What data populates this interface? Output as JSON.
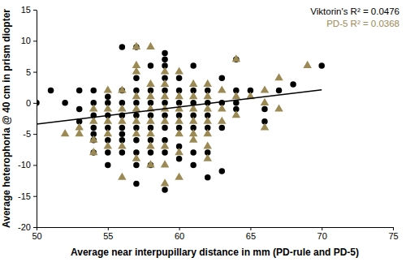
{
  "chart_data": {
    "type": "scatter",
    "x_label": "Average near interpupillary distance in mm (PD-rule and PD-5)",
    "y_label": "Average heterophoria @ 40 cm in prism diopter",
    "xlim": [
      50,
      75
    ],
    "ylim": [
      -20,
      15
    ],
    "xticks": [
      50,
      55,
      60,
      65,
      70,
      75
    ],
    "yticks": [
      -20,
      -15,
      -10,
      -5,
      0,
      5,
      10,
      15
    ],
    "grid": false,
    "legend": "top-right",
    "series": [
      {
        "name": "Viktorin's R² = 0.0476",
        "color": "#000000",
        "marker": "circle",
        "x": [
          50,
          51,
          52,
          53,
          53,
          53,
          54,
          54,
          54,
          54,
          54,
          54,
          54,
          55,
          55,
          55,
          55,
          55,
          55,
          55,
          56,
          56,
          56,
          56,
          56,
          56,
          56,
          56,
          57,
          57,
          57,
          57,
          57,
          57,
          57,
          57,
          57,
          57,
          58,
          58,
          58,
          58,
          58,
          58,
          58,
          58,
          59,
          59,
          59,
          59,
          59,
          59,
          59,
          59,
          59,
          59,
          59,
          60,
          60,
          60,
          60,
          60,
          60,
          61,
          61,
          61,
          61,
          61,
          61,
          61,
          62,
          62,
          62,
          62,
          62,
          62,
          63,
          63,
          63,
          64,
          64,
          64,
          64,
          65,
          66,
          66,
          67,
          68,
          70,
          63,
          60
        ],
        "values": [
          0,
          2,
          0,
          2,
          -1,
          -3,
          2,
          0,
          -2,
          -4,
          -5,
          -6,
          -8,
          1,
          0,
          -2,
          -4,
          -6,
          -8,
          -10,
          9,
          2,
          0,
          -2,
          -4,
          -5,
          -6,
          -8,
          9,
          4,
          2,
          0,
          -2,
          -4,
          -6,
          -8,
          -10,
          -13,
          6,
          2,
          0,
          -2,
          -4,
          -6,
          -8,
          -10,
          8,
          7,
          6,
          4,
          2,
          0,
          -2,
          -4,
          -6,
          -8,
          -14,
          4,
          2,
          0,
          -2,
          -4,
          -7,
          6,
          2,
          0,
          -2,
          -4,
          -8,
          -10,
          2,
          0,
          -2,
          -4,
          -8,
          -12,
          4,
          0,
          -4,
          7,
          2,
          0,
          -1,
          2,
          -1,
          -3,
          2,
          3,
          6,
          -11,
          -9
        ]
      },
      {
        "name": "PD-5 R² = 0.0368",
        "color": "#9c8a54",
        "marker": "triangle",
        "x": [
          53,
          53,
          54,
          54,
          54,
          55,
          55,
          55,
          55,
          56,
          56,
          56,
          56,
          56,
          57,
          57,
          57,
          57,
          57,
          57,
          57,
          57,
          58,
          58,
          58,
          58,
          58,
          58,
          58,
          58,
          59,
          59,
          59,
          59,
          59,
          59,
          59,
          59,
          60,
          60,
          60,
          60,
          60,
          60,
          60,
          61,
          61,
          61,
          61,
          61,
          61,
          62,
          62,
          62,
          62,
          62,
          62,
          62,
          63,
          63,
          63,
          64,
          64,
          64,
          65,
          66,
          66,
          67,
          67,
          69,
          66,
          52,
          54,
          55
        ],
        "values": [
          -4,
          -5,
          -1,
          -3,
          -6,
          -5,
          -3,
          -7,
          2,
          2,
          -1,
          -3,
          -7,
          -12,
          9,
          6,
          5,
          1,
          -1,
          -3,
          -5,
          -9,
          9,
          3,
          1,
          -1,
          -3,
          -5,
          -7,
          -10,
          5,
          3,
          1,
          -1,
          -3,
          -7,
          -10,
          -13,
          5,
          1,
          -1,
          -3,
          -5,
          -8,
          -12,
          3,
          1,
          -1,
          -3,
          -5,
          -6,
          3,
          1,
          -1,
          -3,
          -5,
          -7,
          -9,
          2,
          -1,
          -3,
          7,
          1,
          -2,
          1,
          2,
          0,
          -1,
          4,
          6,
          -4,
          -5,
          -8,
          -1
        ]
      }
    ],
    "trend_line": {
      "x": [
        50,
        70
      ],
      "values": [
        -3.4,
        2.1
      ],
      "color": "#000000"
    }
  }
}
